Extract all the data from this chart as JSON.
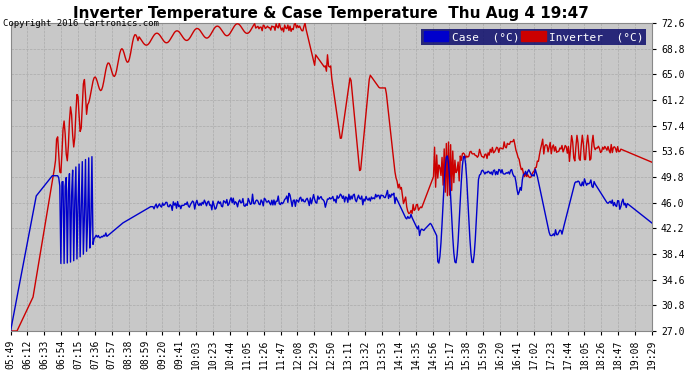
{
  "title": "Inverter Temperature & Case Temperature  Thu Aug 4 19:47",
  "copyright": "Copyright 2016 Cartronics.com",
  "y_ticks": [
    27.0,
    30.8,
    34.6,
    38.4,
    42.2,
    46.0,
    49.8,
    53.6,
    57.4,
    61.2,
    65.0,
    68.8,
    72.6
  ],
  "y_min": 27.0,
  "y_max": 72.6,
  "x_labels": [
    "05:49",
    "06:12",
    "06:33",
    "06:54",
    "07:15",
    "07:36",
    "07:57",
    "08:38",
    "08:59",
    "09:20",
    "09:41",
    "10:03",
    "10:23",
    "10:44",
    "11:05",
    "11:26",
    "11:47",
    "12:08",
    "12:29",
    "12:50",
    "13:11",
    "13:32",
    "13:53",
    "14:14",
    "14:35",
    "14:56",
    "15:17",
    "15:38",
    "15:59",
    "16:20",
    "16:41",
    "17:02",
    "17:23",
    "17:44",
    "18:05",
    "18:26",
    "18:47",
    "19:08",
    "19:29"
  ],
  "case_color": "#0000cc",
  "inv_color": "#cc0000",
  "bg_color": "#ffffff",
  "plot_bg_color": "#c8c8c8",
  "grid_color": "#aaaaaa",
  "title_fontsize": 11,
  "tick_fontsize": 7,
  "legend_fontsize": 8,
  "line_width": 1.0
}
